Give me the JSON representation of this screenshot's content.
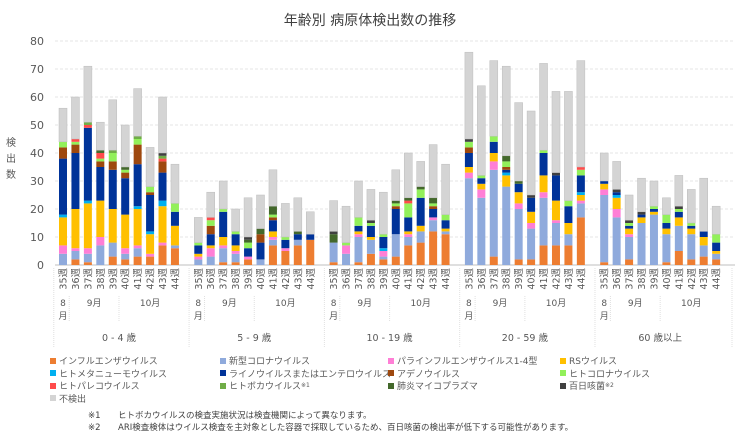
{
  "chart_data": {
    "type": "bar",
    "stacked": true,
    "title": "年齢別 病原体検出数の推移",
    "ylabel": "検出数",
    "ylim": [
      0,
      80
    ],
    "yticks": [
      0,
      10,
      20,
      30,
      40,
      50,
      60,
      70,
      80
    ],
    "grid": true,
    "legend_position": "bottom",
    "weeks": [
      "35週",
      "36週",
      "37週",
      "38週",
      "39週",
      "40週",
      "41週",
      "42週",
      "43週",
      "44週"
    ],
    "months": [
      {
        "label_top": "8",
        "label_bottom": "月",
        "from": 0,
        "to": 0
      },
      {
        "label_top": "9月",
        "label_bottom": "",
        "from": 1,
        "to": 4
      },
      {
        "label_top": "10月",
        "label_bottom": "",
        "from": 5,
        "to": 9
      }
    ],
    "series": [
      {
        "name": "インフルエンザウイルス",
        "color": "#ED7D31"
      },
      {
        "name": "新型コロナウイルス",
        "color": "#8FAADC"
      },
      {
        "name": "パラインフルエンザウイルス1-4型",
        "color": "#FF7FD6"
      },
      {
        "name": "RSウイルス",
        "color": "#FFC000"
      },
      {
        "name": "ヒトメタニューモウイルス",
        "color": "#00B0F0"
      },
      {
        "name": "ライノウイルスまたはエンテロウイルス",
        "color": "#003399"
      },
      {
        "name": "アデノウイルス",
        "color": "#9E480E"
      },
      {
        "name": "ヒトコロナウイルス",
        "color": "#92F05A"
      },
      {
        "name": "ヒトパレコウイルス",
        "color": "#FF4B4B"
      },
      {
        "name": "ヒトボカウイルス",
        "sup": "※1",
        "color": "#70AD47"
      },
      {
        "name": "肺炎マイコプラズマ",
        "color": "#43682B"
      },
      {
        "name": "百日咳菌",
        "sup": "※2",
        "color": "#404040"
      },
      {
        "name": "不検出",
        "color": "#D4D4D4"
      }
    ],
    "groups": [
      {
        "label": "0 - 4 歳",
        "values": [
          [
            0,
            4,
            3,
            10,
            1,
            20,
            4,
            2,
            0,
            0,
            0,
            0,
            12
          ],
          [
            2,
            3,
            1,
            14,
            0,
            20,
            3,
            1,
            1,
            0,
            0,
            0,
            15
          ],
          [
            1,
            3,
            2,
            16,
            1,
            26,
            0,
            0,
            1,
            1,
            0,
            0,
            20
          ],
          [
            0,
            7,
            3,
            13,
            0,
            12,
            2,
            1,
            2,
            0,
            1,
            0,
            10
          ],
          [
            3,
            5,
            0,
            12,
            0,
            14,
            3,
            3,
            0,
            1,
            0,
            0,
            18
          ],
          [
            2,
            2,
            2,
            12,
            0,
            13,
            2,
            1,
            0,
            0,
            1,
            0,
            15
          ],
          [
            3,
            3,
            1,
            13,
            1,
            15,
            7,
            2,
            0,
            1,
            0,
            0,
            17
          ],
          [
            3,
            0,
            1,
            7,
            1,
            13,
            1,
            2,
            0,
            0,
            0,
            0,
            14
          ],
          [
            7,
            0,
            1,
            13,
            2,
            10,
            4,
            0,
            1,
            1,
            0,
            1,
            20
          ],
          [
            6,
            1,
            0,
            7,
            0,
            5,
            0,
            3,
            0,
            0,
            0,
            0,
            14
          ]
        ]
      },
      {
        "label": "5 - 9 歳",
        "values": [
          [
            0,
            2,
            1,
            1,
            0,
            3,
            0,
            1,
            0,
            0,
            0,
            0,
            9
          ],
          [
            0,
            3,
            3,
            1,
            0,
            4,
            3,
            2,
            1,
            0,
            0,
            0,
            9
          ],
          [
            1,
            5,
            1,
            3,
            0,
            9,
            0,
            1,
            0,
            0,
            0,
            0,
            10
          ],
          [
            1,
            3,
            1,
            2,
            0,
            4,
            0,
            1,
            0,
            0,
            0,
            0,
            8
          ],
          [
            2,
            0,
            1,
            0,
            0,
            3,
            0,
            2,
            0,
            0,
            1,
            1,
            14
          ],
          [
            0,
            2,
            0,
            0,
            0,
            6,
            3,
            0,
            0,
            0,
            2,
            0,
            12
          ],
          [
            7,
            2,
            1,
            2,
            0,
            4,
            1,
            1,
            0,
            0,
            3,
            0,
            13
          ],
          [
            5,
            0,
            1,
            0,
            0,
            3,
            0,
            1,
            0,
            0,
            0,
            0,
            12
          ],
          [
            7,
            2,
            0,
            0,
            0,
            2,
            0,
            0,
            0,
            0,
            1,
            0,
            12
          ],
          [
            9,
            0,
            0,
            0,
            0,
            2,
            0,
            0,
            0,
            0,
            0,
            0,
            8
          ]
        ]
      },
      {
        "label": "10 - 19 歳",
        "values": [
          [
            1,
            7,
            0,
            0,
            0,
            0,
            0,
            0,
            0,
            0,
            3,
            1,
            11
          ],
          [
            0,
            4,
            3,
            0,
            0,
            0,
            0,
            1,
            0,
            0,
            0,
            0,
            13
          ],
          [
            1,
            9,
            1,
            1,
            0,
            2,
            0,
            3,
            0,
            0,
            0,
            0,
            13
          ],
          [
            4,
            5,
            0,
            1,
            0,
            4,
            0,
            1,
            0,
            0,
            0,
            1,
            11
          ],
          [
            2,
            1,
            2,
            0,
            1,
            4,
            0,
            1,
            0,
            0,
            0,
            0,
            15
          ],
          [
            3,
            8,
            0,
            0,
            0,
            9,
            1,
            1,
            0,
            0,
            1,
            0,
            11
          ],
          [
            7,
            3,
            1,
            1,
            0,
            5,
            0,
            5,
            1,
            0,
            1,
            0,
            16
          ],
          [
            8,
            4,
            0,
            2,
            0,
            10,
            0,
            3,
            0,
            0,
            1,
            0,
            9
          ],
          [
            12,
            4,
            1,
            0,
            0,
            3,
            1,
            1,
            0,
            0,
            2,
            0,
            19
          ],
          [
            11,
            1,
            0,
            1,
            0,
            3,
            0,
            2,
            0,
            0,
            0,
            0,
            18
          ]
        ]
      },
      {
        "label": "20 - 59 歳",
        "values": [
          [
            0,
            31,
            2,
            2,
            0,
            5,
            2,
            2,
            0,
            0,
            0,
            1,
            31
          ],
          [
            0,
            24,
            3,
            2,
            0,
            2,
            0,
            1,
            0,
            0,
            0,
            0,
            32
          ],
          [
            3,
            31,
            3,
            3,
            0,
            4,
            0,
            2,
            0,
            0,
            0,
            0,
            27
          ],
          [
            0,
            28,
            0,
            4,
            1,
            1,
            1,
            2,
            0,
            0,
            2,
            0,
            32
          ],
          [
            2,
            18,
            2,
            4,
            0,
            3,
            0,
            0,
            0,
            0,
            1,
            0,
            28
          ],
          [
            2,
            11,
            2,
            4,
            0,
            5,
            0,
            0,
            0,
            0,
            0,
            1,
            30
          ],
          [
            7,
            17,
            2,
            6,
            0,
            8,
            0,
            1,
            0,
            0,
            0,
            0,
            31
          ],
          [
            7,
            8,
            1,
            7,
            0,
            9,
            0,
            0,
            0,
            0,
            0,
            1,
            29
          ],
          [
            7,
            4,
            0,
            4,
            0,
            6,
            0,
            2,
            0,
            0,
            0,
            0,
            39
          ],
          [
            17,
            5,
            1,
            2,
            1,
            6,
            0,
            2,
            1,
            0,
            0,
            0,
            38
          ]
        ]
      },
      {
        "label": "60 歳以上",
        "values": [
          [
            1,
            24,
            2,
            2,
            0,
            1,
            0,
            0,
            0,
            0,
            0,
            0,
            10
          ],
          [
            0,
            17,
            3,
            4,
            1,
            1,
            0,
            0,
            0,
            0,
            0,
            1,
            10
          ],
          [
            2,
            8,
            1,
            2,
            0,
            1,
            0,
            1,
            0,
            0,
            0,
            1,
            9
          ],
          [
            0,
            15,
            0,
            2,
            0,
            1,
            0,
            0,
            0,
            0,
            0,
            1,
            12
          ],
          [
            0,
            18,
            0,
            1,
            0,
            1,
            0,
            1,
            0,
            0,
            0,
            0,
            9
          ],
          [
            1,
            10,
            0,
            2,
            0,
            2,
            0,
            3,
            0,
            0,
            0,
            0,
            6
          ],
          [
            5,
            9,
            0,
            3,
            0,
            2,
            0,
            1,
            0,
            0,
            0,
            1,
            11
          ],
          [
            2,
            9,
            0,
            2,
            0,
            1,
            0,
            1,
            0,
            0,
            0,
            0,
            12
          ],
          [
            3,
            4,
            0,
            3,
            0,
            2,
            0,
            0,
            0,
            0,
            0,
            0,
            19
          ],
          [
            2,
            2,
            0,
            1,
            0,
            3,
            0,
            3,
            0,
            0,
            0,
            0,
            10
          ]
        ]
      }
    ]
  },
  "notes": [
    {
      "mark": "※1",
      "text": "ヒトボカウイルスの検査実施状況は検査機関によって異なります。"
    },
    {
      "mark": "※2",
      "text": "ARI検査検体はウイルス検査を主対象とした容器で採取しているため、百日咳菌の検出率が低下する可能性があります。"
    }
  ]
}
